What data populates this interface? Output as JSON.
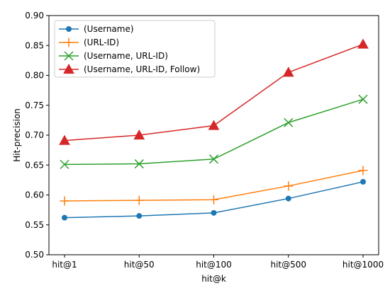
{
  "chart_data": {
    "type": "line",
    "categories": [
      "hit@1",
      "hit@50",
      "hit@100",
      "hit@500",
      "hit@1000"
    ],
    "xlabel": "hit@k",
    "ylabel": "Hit-precision",
    "ylim": [
      0.5,
      0.9
    ],
    "yticks": [
      "0.50",
      "0.55",
      "0.60",
      "0.65",
      "0.70",
      "0.75",
      "0.80",
      "0.85",
      "0.90"
    ],
    "grid": false,
    "legend_position": "top-left",
    "series": [
      {
        "name": "(Username)",
        "color": "#1f77b4",
        "marker": "circle",
        "values": [
          0.562,
          0.565,
          0.57,
          0.594,
          0.622
        ]
      },
      {
        "name": "(URL-ID)",
        "color": "#ff7f0e",
        "marker": "plus",
        "values": [
          0.59,
          0.591,
          0.592,
          0.615,
          0.641
        ]
      },
      {
        "name": "(Username, URL-ID)",
        "color": "#2ca02c",
        "marker": "x",
        "values": [
          0.651,
          0.652,
          0.66,
          0.721,
          0.76
        ]
      },
      {
        "name": "(Username, URL-ID, Follow)",
        "color": "#d62728",
        "marker": "triangle",
        "values": [
          0.691,
          0.7,
          0.716,
          0.805,
          0.852
        ]
      }
    ]
  }
}
